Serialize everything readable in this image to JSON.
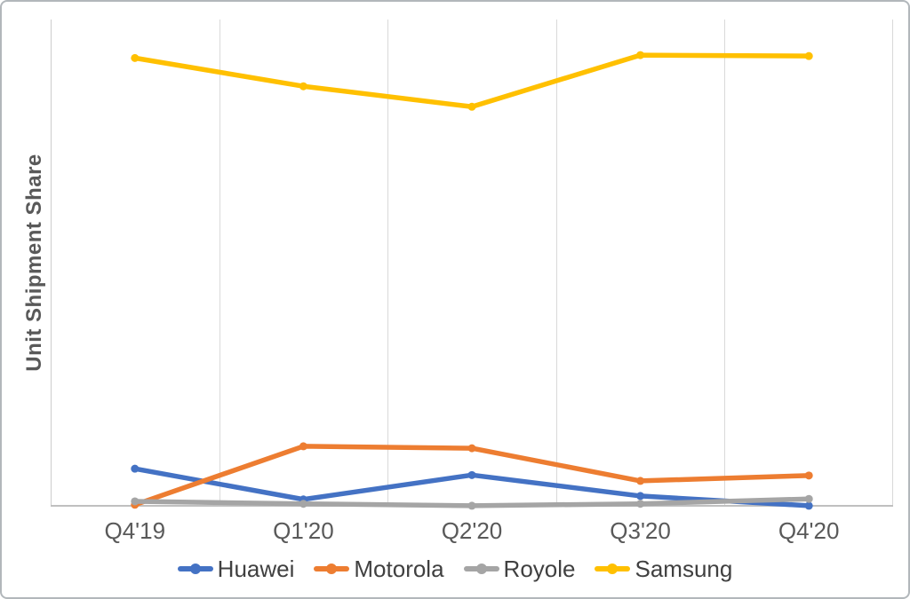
{
  "chart_data": {
    "type": "line",
    "title": "",
    "ylabel": "Unit Shipment Share",
    "xlabel": "",
    "categories": [
      "Q4'19",
      "Q1'20",
      "Q2'20",
      "Q3'20",
      "Q4'20"
    ],
    "ylim": [
      0,
      100
    ],
    "y_tick_labels": [],
    "grid": "vertical-only",
    "legend_position": "bottom",
    "marker": "circle",
    "series": [
      {
        "name": "Huawei",
        "color": "#4472C4",
        "values": [
          7.8,
          1.5,
          6.5,
          2.2,
          0.2
        ]
      },
      {
        "name": "Motorola",
        "color": "#ED7D31",
        "values": [
          0.4,
          12.4,
          12.0,
          5.3,
          6.4
        ]
      },
      {
        "name": "Royole",
        "color": "#A5A5A5",
        "values": [
          1.1,
          0.6,
          0.2,
          0.6,
          1.6
        ]
      },
      {
        "name": "Samsung",
        "color": "#FFC000",
        "values": [
          92.1,
          86.3,
          82.1,
          92.7,
          92.5
        ]
      }
    ]
  },
  "colors": {
    "axis_text": "#595959",
    "legend_text": "#404040",
    "gridline": "#d9d9d9",
    "axis_line": "#c0c0c0",
    "border": "#b2b7bb",
    "background": "#ffffff"
  }
}
